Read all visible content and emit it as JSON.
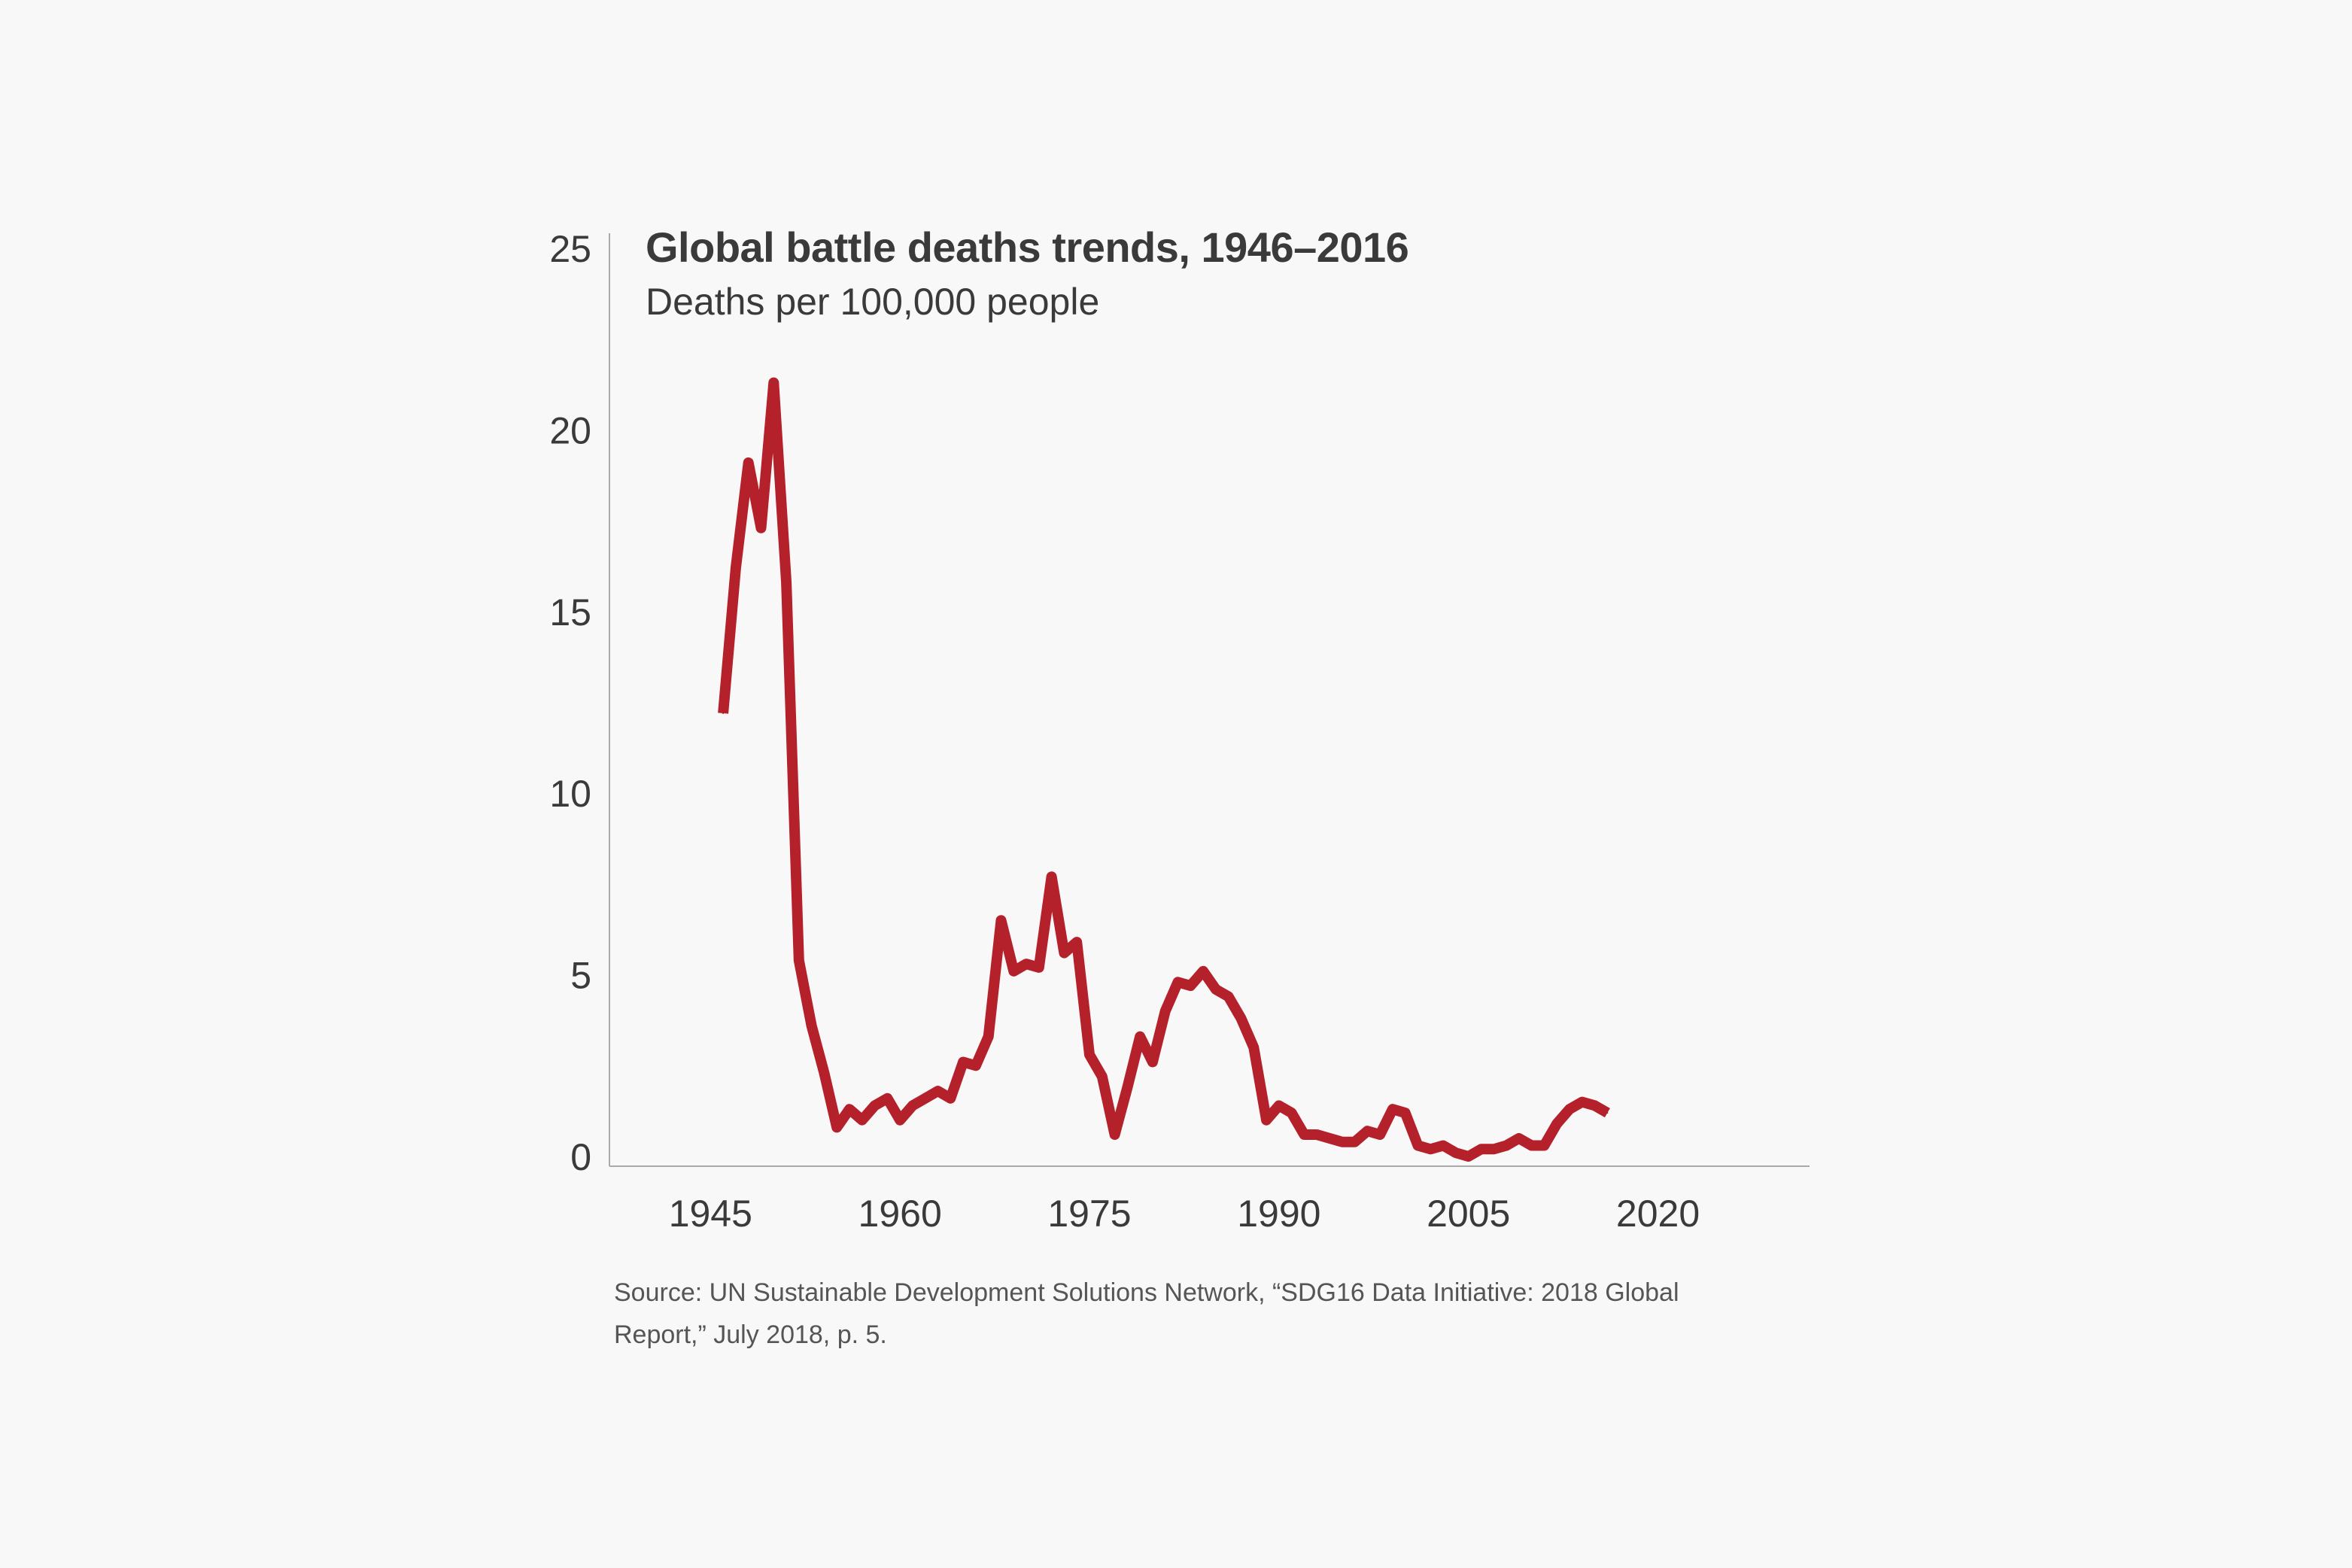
{
  "chart_data": {
    "type": "line",
    "title": "Global battle deaths trends, 1946–2016",
    "subtitle": "Deaths per 100,000 people",
    "xlabel": "",
    "ylabel": "",
    "xlim": [
      1937,
      2032
    ],
    "ylim": [
      0,
      25
    ],
    "x_ticks": [
      "1945",
      "1960",
      "1975",
      "1990",
      "2005",
      "2020"
    ],
    "y_ticks": [
      "0",
      "5",
      "10",
      "15",
      "20",
      "25"
    ],
    "grid": false,
    "legend": "none",
    "series": [
      {
        "color": "#b5212b",
        "x": [
          1946,
          1947,
          1948,
          1949,
          1950,
          1951,
          1952,
          1953,
          1954,
          1955,
          1956,
          1957,
          1958,
          1959,
          1960,
          1961,
          1962,
          1963,
          1964,
          1965,
          1966,
          1967,
          1968,
          1969,
          1970,
          1971,
          1972,
          1973,
          1974,
          1975,
          1976,
          1977,
          1978,
          1979,
          1980,
          1981,
          1982,
          1983,
          1984,
          1985,
          1986,
          1987,
          1988,
          1989,
          1990,
          1991,
          1992,
          1993,
          1994,
          1995,
          1996,
          1997,
          1998,
          1999,
          2000,
          2001,
          2002,
          2003,
          2004,
          2005,
          2006,
          2007,
          2008,
          2009,
          2010,
          2011,
          2012,
          2013,
          2014,
          2015,
          2016
        ],
        "y": [
          12.2,
          16.2,
          19.1,
          17.3,
          21.3,
          15.8,
          5.4,
          3.6,
          2.3,
          0.8,
          1.3,
          1.0,
          1.4,
          1.6,
          1.0,
          1.4,
          1.6,
          1.8,
          1.6,
          2.6,
          2.5,
          3.3,
          6.5,
          5.1,
          5.3,
          5.2,
          7.7,
          5.6,
          5.9,
          2.8,
          2.2,
          0.6,
          1.9,
          3.3,
          2.6,
          4.0,
          4.8,
          4.7,
          5.1,
          4.6,
          4.4,
          3.8,
          3.0,
          1.0,
          1.4,
          1.2,
          0.6,
          0.6,
          0.5,
          0.4,
          0.4,
          0.7,
          0.6,
          1.3,
          1.2,
          0.3,
          0.2,
          0.3,
          0.1,
          0.0,
          0.2,
          0.2,
          0.3,
          0.5,
          0.3,
          0.3,
          0.9,
          1.3,
          1.5,
          1.4,
          1.2
        ]
      }
    ]
  },
  "source": {
    "line1": "Source: UN Sustainable Development Solutions Network, “SDG16 Data Initiative: 2018 Global",
    "line2": "Report,” July 2018, p. 5."
  }
}
